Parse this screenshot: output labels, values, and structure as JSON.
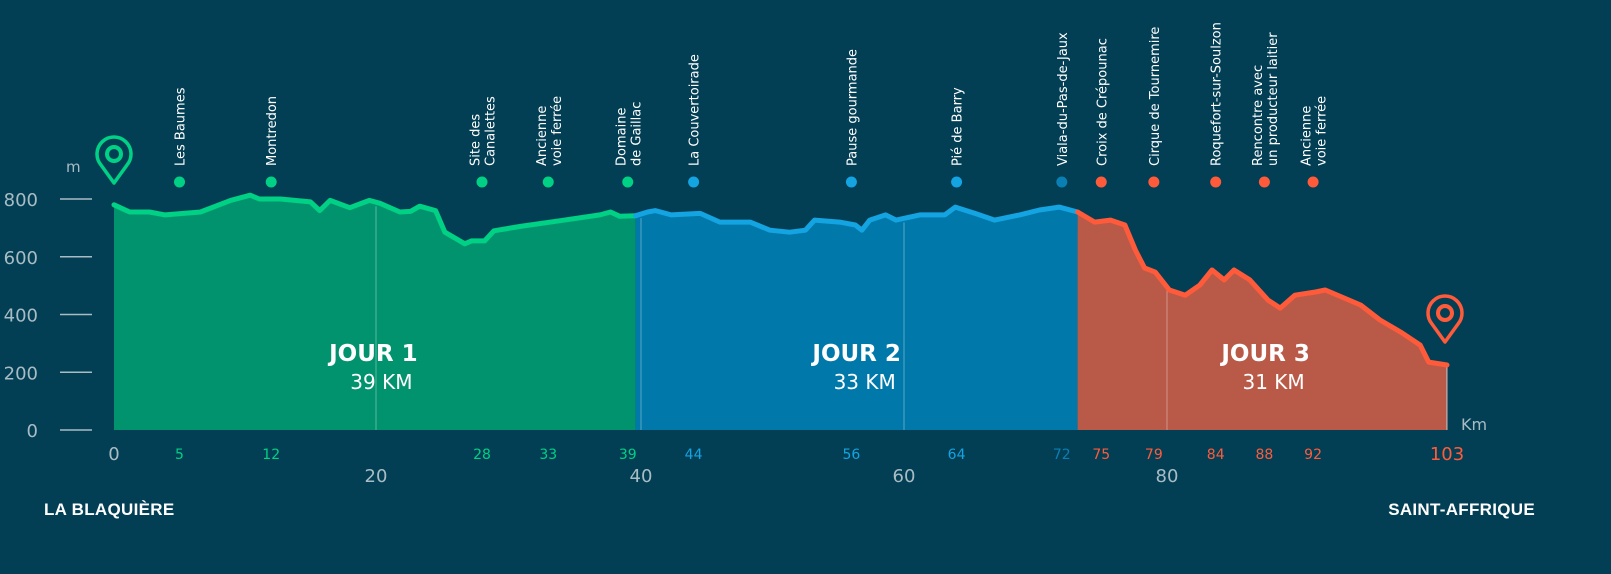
{
  "chart_data": {
    "type": "area",
    "title": "",
    "xlabel": "Km",
    "ylabel": "m",
    "xlim": [
      0,
      103
    ],
    "ylim": [
      0,
      800
    ],
    "y_ticks": [
      0,
      200,
      400,
      600,
      800
    ],
    "x_ticks": [
      20,
      40,
      60,
      80
    ],
    "x_start_label": "0",
    "x_end_label": "103",
    "start_name": "LA BLAQUIÈRE",
    "end_name": "SAINT-AFFRIQUE",
    "days": [
      {
        "title": "JOUR 1",
        "distance": "39 KM",
        "color_fill": "#00936e",
        "color_line": "#00d184",
        "profile": [
          [
            0,
            780
          ],
          [
            1.2,
            755
          ],
          [
            2.7,
            755
          ],
          [
            3.9,
            745
          ],
          [
            6.6,
            755
          ],
          [
            8.9,
            795
          ],
          [
            10.4,
            813
          ],
          [
            11.1,
            800
          ],
          [
            12.7,
            800
          ],
          [
            15.0,
            790
          ],
          [
            15.7,
            760
          ],
          [
            16.5,
            795
          ],
          [
            18.0,
            770
          ],
          [
            19.5,
            795
          ],
          [
            20.3,
            785
          ],
          [
            21.8,
            755
          ],
          [
            22.6,
            757
          ],
          [
            23.3,
            775
          ],
          [
            24.5,
            760
          ],
          [
            25.2,
            685
          ],
          [
            26.7,
            645
          ],
          [
            27.2,
            655
          ],
          [
            28.2,
            655
          ],
          [
            28.9,
            690
          ],
          [
            30.9,
            705
          ],
          [
            33.9,
            725
          ],
          [
            36.9,
            745
          ],
          [
            37.7,
            755
          ],
          [
            38.4,
            740
          ],
          [
            39.6,
            742
          ]
        ]
      },
      {
        "title": "JOUR 2",
        "distance": "33 KM",
        "color_fill": "#0079aa",
        "color_line": "#14a4e2",
        "profile": [
          [
            39.6,
            742
          ],
          [
            40.5,
            755
          ],
          [
            41.1,
            760
          ],
          [
            42.3,
            745
          ],
          [
            44.5,
            750
          ],
          [
            46.0,
            720
          ],
          [
            48.3,
            720
          ],
          [
            49.8,
            692
          ],
          [
            51.3,
            685
          ],
          [
            52.5,
            692
          ],
          [
            53.2,
            727
          ],
          [
            55.1,
            720
          ],
          [
            56.3,
            710
          ],
          [
            56.8,
            692
          ],
          [
            57.4,
            727
          ],
          [
            58.6,
            745
          ],
          [
            59.4,
            727
          ],
          [
            61.2,
            745
          ],
          [
            63.1,
            745
          ],
          [
            63.9,
            772
          ],
          [
            65.4,
            750
          ],
          [
            66.9,
            727
          ],
          [
            68.8,
            745
          ],
          [
            70.3,
            762
          ],
          [
            71.8,
            772
          ],
          [
            73.2,
            755
          ]
        ]
      },
      {
        "title": "JOUR 3",
        "distance": "31 KM",
        "color_fill": "#b95a48",
        "color_line": "#ff5b3b",
        "profile": [
          [
            73.2,
            755
          ],
          [
            74.5,
            720
          ],
          [
            75.7,
            727
          ],
          [
            76.8,
            710
          ],
          [
            77.6,
            623
          ],
          [
            78.3,
            561
          ],
          [
            79.1,
            547
          ],
          [
            80.2,
            485
          ],
          [
            81.5,
            467
          ],
          [
            82.7,
            502
          ],
          [
            83.7,
            554
          ],
          [
            84.7,
            520
          ],
          [
            85.5,
            554
          ],
          [
            86.8,
            520
          ],
          [
            88.3,
            450
          ],
          [
            89.3,
            422
          ],
          [
            90.5,
            467
          ],
          [
            92.2,
            478
          ],
          [
            93.0,
            485
          ],
          [
            95.9,
            433
          ],
          [
            97.5,
            381
          ],
          [
            99.2,
            339
          ],
          [
            100.8,
            294
          ],
          [
            101.5,
            235
          ],
          [
            103,
            225
          ]
        ]
      }
    ],
    "waypoints": [
      {
        "km": 5,
        "label": "5",
        "name": [
          "Les Baumes"
        ],
        "color": "#00d184"
      },
      {
        "km": 12,
        "label": "12",
        "name": [
          "Montredon"
        ],
        "color": "#00d184"
      },
      {
        "km": 28,
        "label": "28",
        "name": [
          "Site des",
          "Canalettes"
        ],
        "color": "#00d184"
      },
      {
        "km": 33,
        "label": "33",
        "name": [
          "Ancienne",
          "voie ferrée"
        ],
        "color": "#00d184"
      },
      {
        "km": 39,
        "label": "39",
        "name": [
          "Domaine",
          "de Gaillac"
        ],
        "color": "#00d184"
      },
      {
        "km": 44,
        "label": "44",
        "name": [
          "La Couvertoirade"
        ],
        "color": "#14a4e2"
      },
      {
        "km": 56,
        "label": "56",
        "name": [
          "Pause gourmande"
        ],
        "color": "#14a4e2"
      },
      {
        "km": 64,
        "label": "64",
        "name": [
          "Pié de Barry"
        ],
        "color": "#14a4e2"
      },
      {
        "km": 72,
        "label": "72",
        "name": [
          "Viala-du-Pas-de-Jaux"
        ],
        "color": "#0a7fb3"
      },
      {
        "km": 75,
        "label": "75",
        "name": [
          "Croix de Crépounac"
        ],
        "color": "#ff5b3b"
      },
      {
        "km": 79,
        "label": "79",
        "name": [
          "Cirque de Tournemire"
        ],
        "color": "#ff5b3b"
      },
      {
        "km": 84,
        "label": "84",
        "name": [
          "Roquefort-sur-Soulzon"
        ],
        "color": "#ff5b3b"
      },
      {
        "km": 88,
        "label": "88",
        "name": [
          "Rencontre avec",
          "un producteur laitier"
        ],
        "color": "#ff5b3b"
      },
      {
        "km": 92,
        "label": "92",
        "name": [
          "Ancienne",
          "voie ferrée"
        ],
        "color": "#ff5b3b"
      }
    ],
    "axis_color": "#a9bcc4",
    "start_marker_color": "#00d184",
    "end_marker_color": "#ff5b3b"
  }
}
